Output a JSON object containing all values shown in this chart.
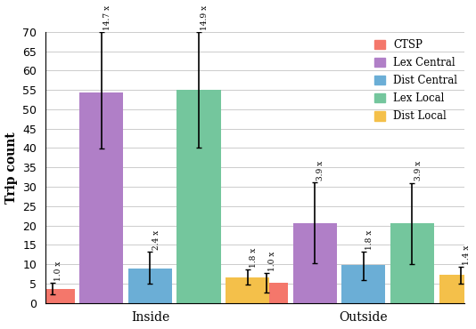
{
  "groups": [
    "Inside",
    "Outside"
  ],
  "series": [
    "CTSP",
    "Lex Central",
    "Dist Central",
    "Lex Local",
    "Dist Local"
  ],
  "colors": [
    "#f4776b",
    "#b07fc7",
    "#6baed6",
    "#74c69d",
    "#f4c04a"
  ],
  "bar_values": {
    "Inside": [
      3.7,
      54.4,
      8.8,
      55.0,
      6.7
    ],
    "Outside": [
      5.3,
      20.7,
      9.8,
      20.5,
      7.2
    ]
  },
  "error_low": {
    "Inside": [
      1.5,
      14.5,
      3.8,
      15.0,
      2.0
    ],
    "Outside": [
      2.5,
      10.5,
      3.8,
      10.5,
      2.2
    ]
  },
  "error_high": {
    "Inside": [
      1.5,
      15.5,
      4.5,
      15.0,
      2.0
    ],
    "Outside": [
      2.5,
      10.5,
      3.5,
      10.5,
      2.2
    ]
  },
  "multipliers": {
    "Inside": [
      "1.0 x",
      "14.7 x",
      "2.4 x",
      "14.9 x",
      "1.8 x"
    ],
    "Outside": [
      "1.0 x",
      "3.9 x",
      "1.8 x",
      "3.9 x",
      "1.4 x"
    ]
  },
  "ylabel": "Trip count",
  "ylim": [
    0,
    70
  ],
  "yticks": [
    0,
    5,
    10,
    15,
    20,
    25,
    30,
    35,
    40,
    45,
    50,
    55,
    60,
    65,
    70
  ],
  "bar_width": 0.13,
  "legend_labels": [
    "CTSP",
    "Lex Central",
    "Dist Central",
    "Lex Local",
    "Dist Local"
  ]
}
